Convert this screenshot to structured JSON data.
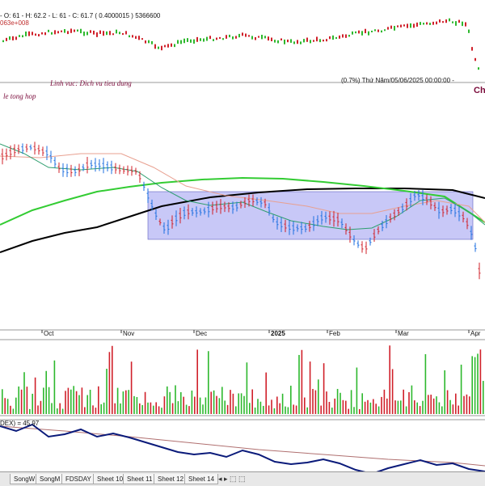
{
  "top_panel": {
    "ohlc_text": "- O: 61 - H: 62.2 - L: 61 - C: 61.7 ( 0.4000015 ) 5366600",
    "volume_text": "063e+008"
  },
  "main_panel": {
    "sector_text": "Linh vuc: Dich vu tieu dung",
    "left_text": "le tong hop",
    "change_text": "(0.7%) Thứ Năm/05/06/2025 00:00:00 -",
    "right_text": "Ch"
  },
  "x_labels": [
    "Oct",
    "Nov",
    "Dec",
    "2025",
    "Feb",
    "Mar",
    "Apr"
  ],
  "indicator_panel": {
    "label": "DEX) = 45.97"
  },
  "tabs": [
    "SongW",
    "SongM",
    "FDSDAY",
    "Sheet 10",
    "Sheet 11",
    "Sheet 12",
    "Sheet 14"
  ],
  "colors": {
    "up": "#1e6fe0",
    "down": "#d0202a",
    "vol_up": "#2db82d",
    "vol_down": "#d0202a",
    "ma_long": "#000000",
    "ma_mid": "#33cc33",
    "ma_short": "#2e9e6e",
    "ma_salmon": "#e8a090",
    "box_fill": "#9b9bf0",
    "dmi_line": "#0a1a7a",
    "dmi_ref": "#b07070"
  },
  "chart_data": {
    "type": "candlestick",
    "x_ticks": [
      "Oct",
      "Nov",
      "Dec",
      "2025",
      "Feb",
      "Mar",
      "Apr"
    ],
    "series_note": "daily OHLC with moving averages, volume bars and DMI indicator",
    "dmi_value": 45.97
  }
}
